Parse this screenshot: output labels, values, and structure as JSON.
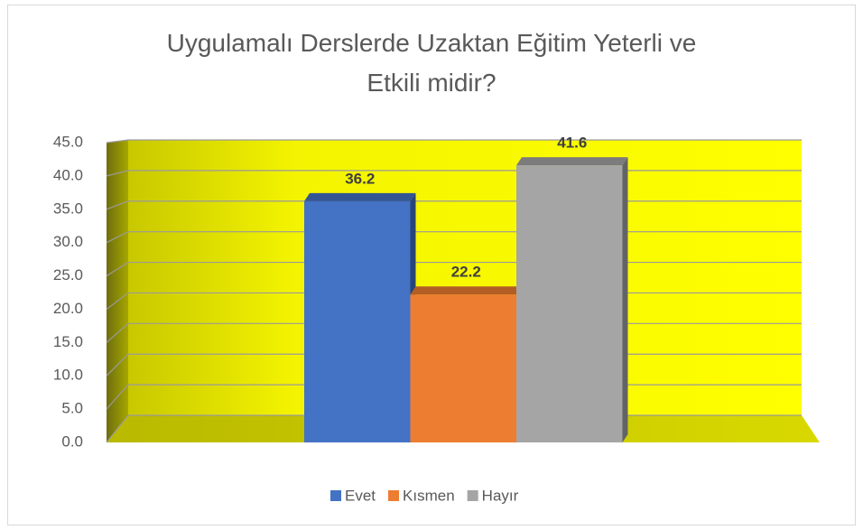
{
  "chart_data": {
    "type": "bar3d",
    "title": "Uygulamalı Derslerde Uzaktan Eğitim Yeterli ve Etkili midir?",
    "categories": [
      null
    ],
    "series": [
      {
        "name": "Evet",
        "color": "#4472c4",
        "values": [
          36.2
        ]
      },
      {
        "name": "Kısmen",
        "color": "#ed7d31",
        "values": [
          22.2
        ]
      },
      {
        "name": "Hayır",
        "color": "#a5a5a5",
        "values": [
          41.6
        ]
      }
    ],
    "ylim": [
      0,
      45
    ],
    "yticks": [
      {
        "value": 0,
        "label": "0.0"
      },
      {
        "value": 5,
        "label": "5.0"
      },
      {
        "value": 10,
        "label": "10.0"
      },
      {
        "value": 15,
        "label": "15.0"
      },
      {
        "value": 20,
        "label": "20.0"
      },
      {
        "value": 25,
        "label": "25.0"
      },
      {
        "value": 30,
        "label": "30.0"
      },
      {
        "value": 35,
        "label": "35.0"
      },
      {
        "value": 40,
        "label": "40.0"
      },
      {
        "value": 45,
        "label": "45.0"
      }
    ],
    "grid": true,
    "legend": "bottom"
  }
}
